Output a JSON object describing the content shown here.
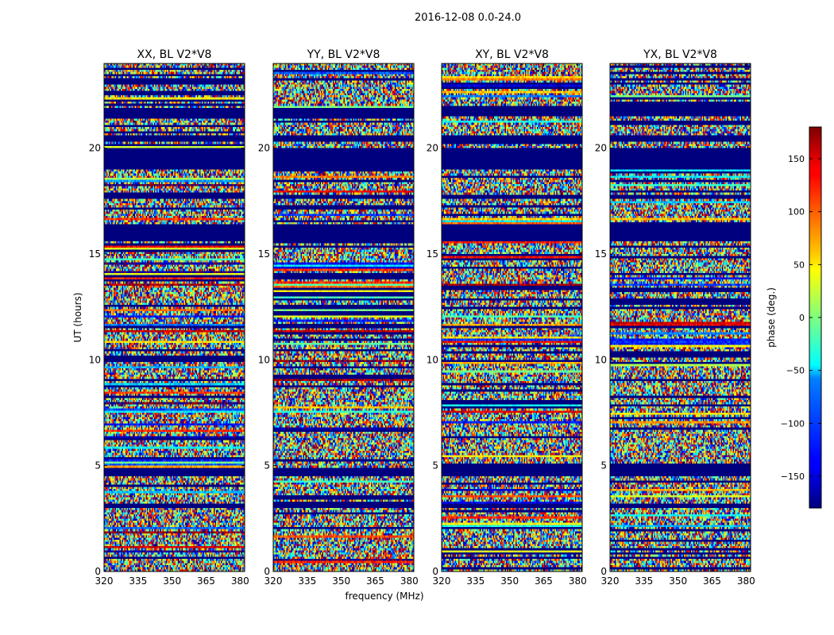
{
  "chart_data": {
    "type": "heatmap",
    "suptitle": "2016-12-08 0.0-24.0",
    "xlabel": "frequency (MHz)",
    "ylabel": "UT (hours)",
    "xlim": [
      320,
      382
    ],
    "ylim": [
      0,
      24
    ],
    "x_ticks": [
      320,
      335,
      350,
      365,
      380
    ],
    "y_ticks": [
      0,
      5,
      10,
      15,
      20
    ],
    "panels": [
      {
        "title": "XX, BL V2*V8"
      },
      {
        "title": "YY, BL V2*V8"
      },
      {
        "title": "XY, BL V2*V8"
      },
      {
        "title": "YX, BL V2*V8"
      }
    ],
    "colorbar": {
      "label": "phase (deg.)",
      "range": [
        -180,
        180
      ],
      "ticks": [
        -150,
        -100,
        -50,
        0,
        50,
        100,
        150
      ],
      "tick_labels": [
        "−150",
        "−100",
        "−50",
        "0",
        "50",
        "100",
        "150"
      ],
      "colormap": "jet"
    },
    "flagged_bands_hours": [
      [
        21.5,
        21.9
      ],
      [
        20.3,
        20.6
      ],
      [
        19.0,
        20.0
      ],
      [
        17.6,
        17.8
      ],
      [
        15.6,
        16.4
      ],
      [
        11.5,
        11.6
      ],
      [
        4.5,
        4.9
      ],
      [
        3.0,
        3.2
      ]
    ]
  },
  "colors": {
    "flagged": "#00007f",
    "frame": "#000000",
    "background": "#ffffff"
  }
}
